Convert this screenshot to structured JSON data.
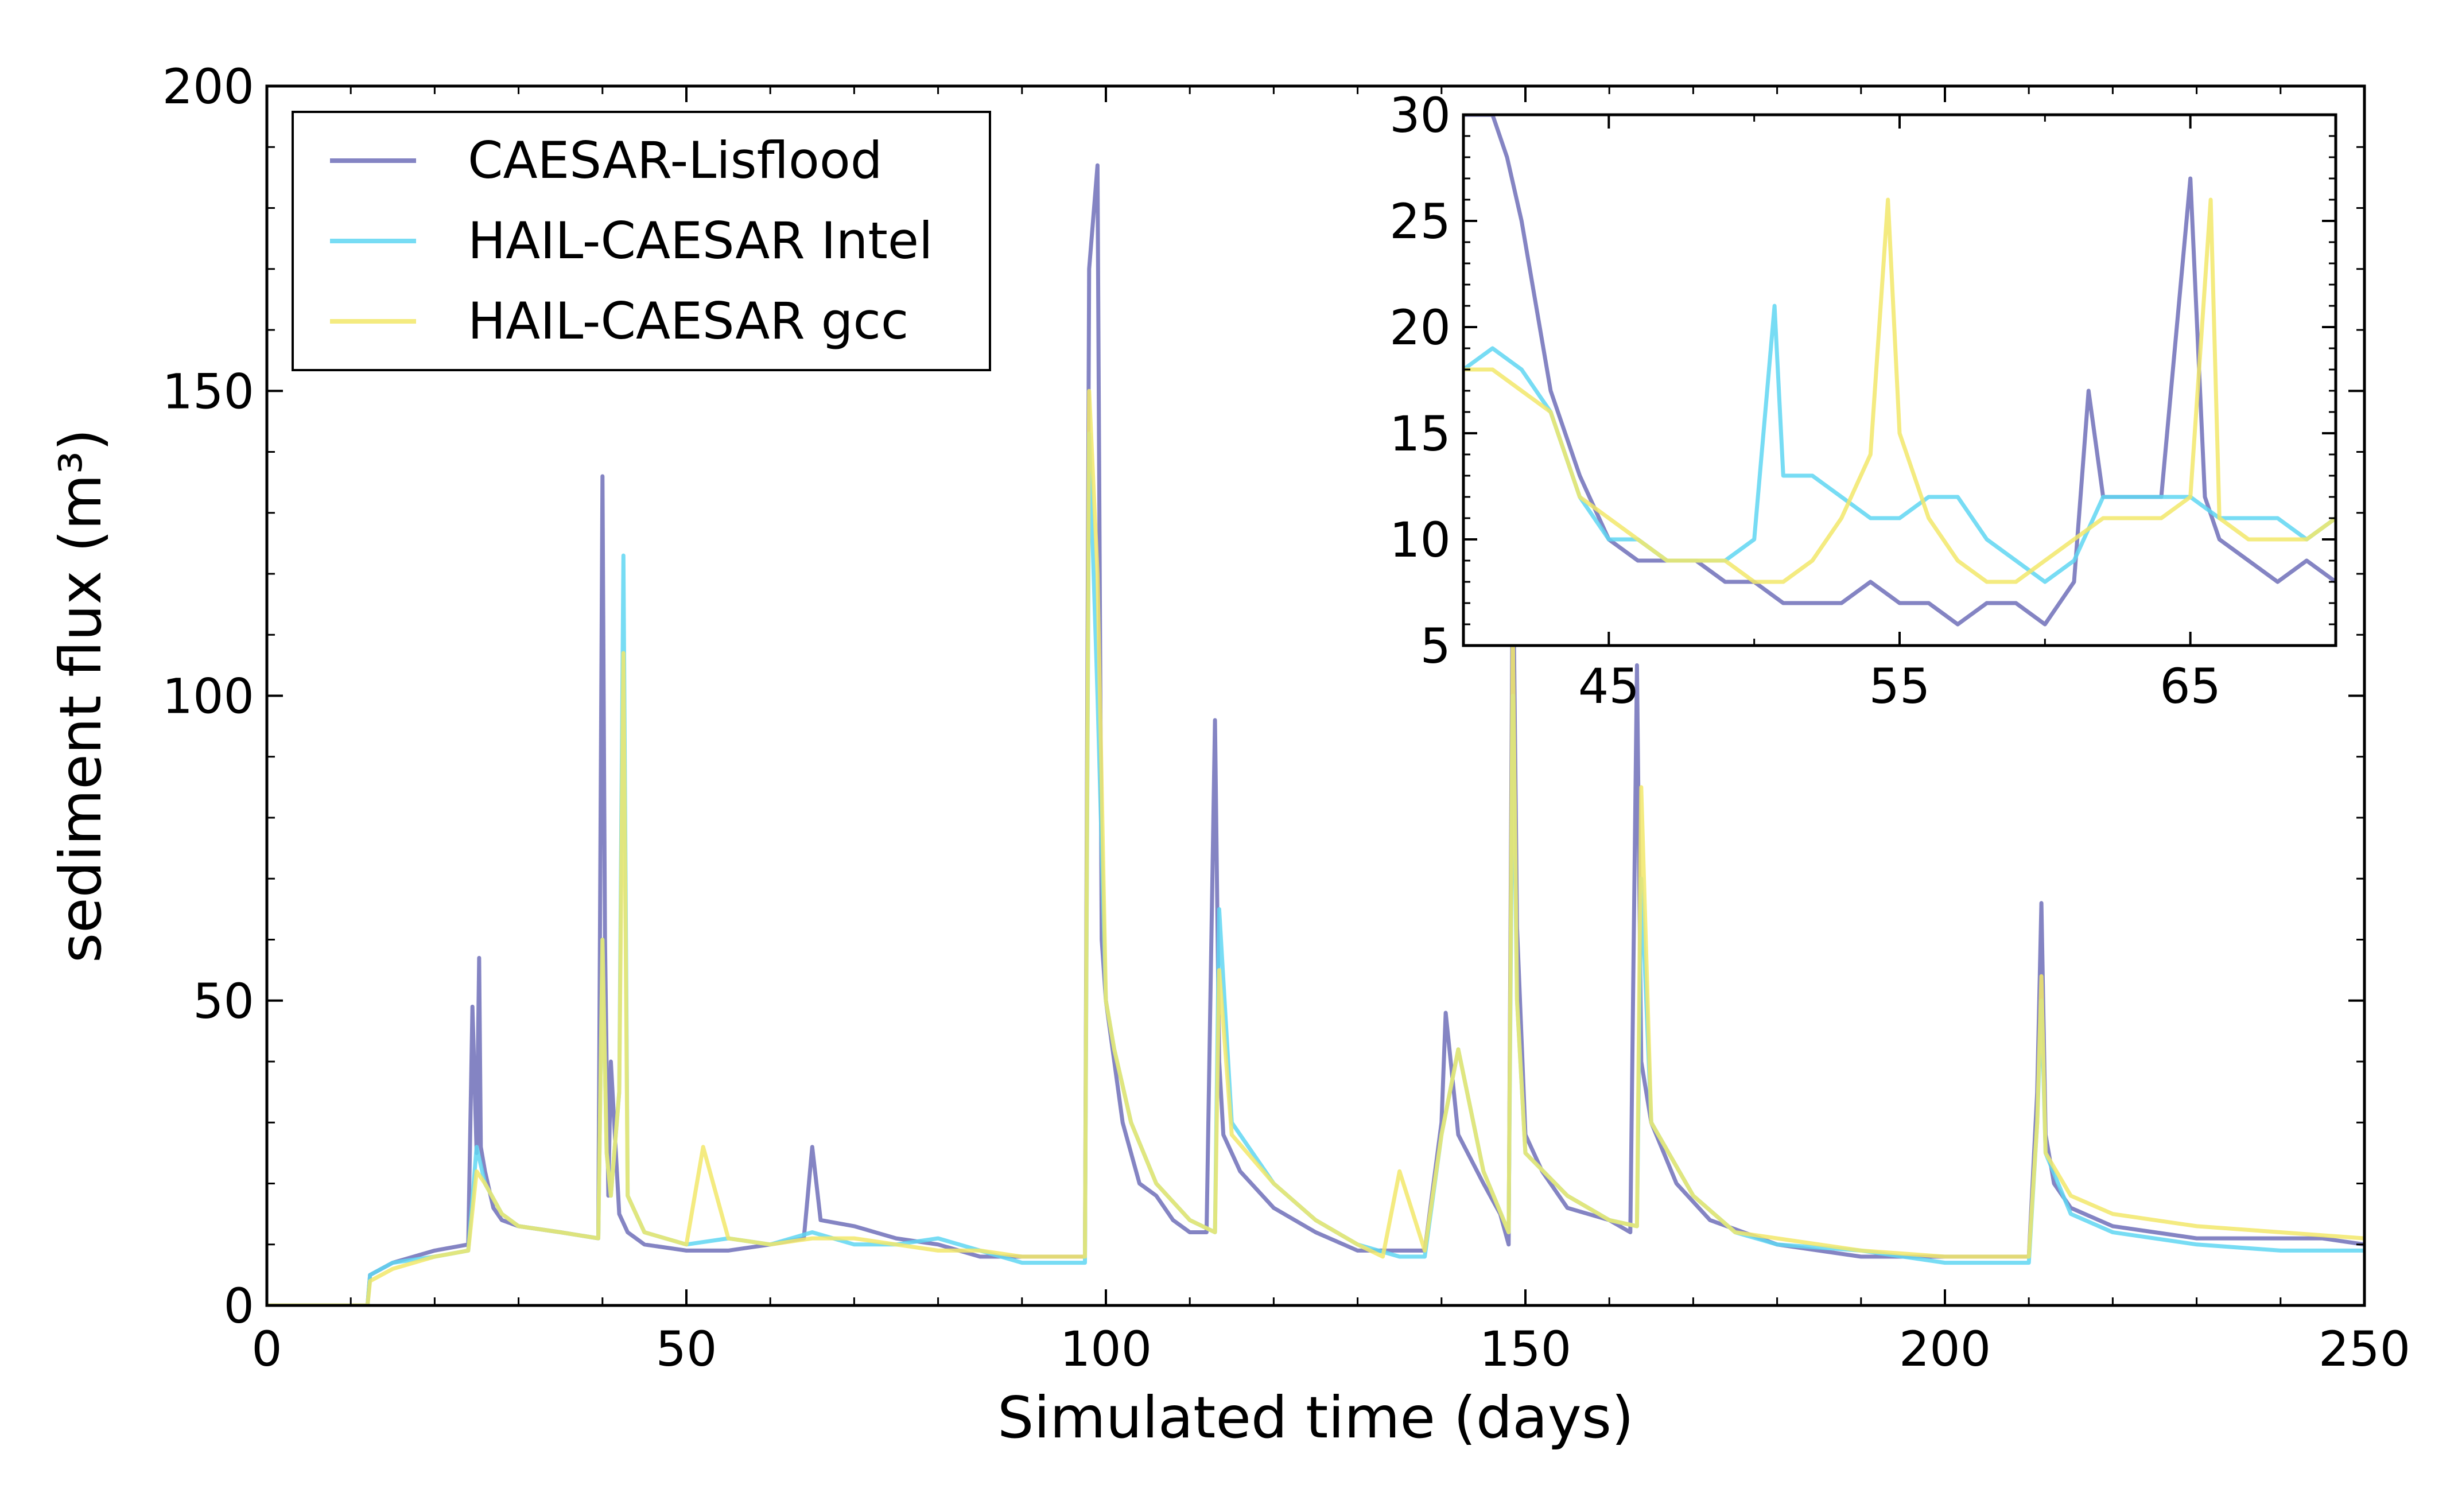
{
  "chart_data": [
    {
      "type": "line",
      "xlabel": "Simulated time (days)",
      "ylabel": "sediment flux (m³)",
      "xlim": [
        0,
        250
      ],
      "ylim": [
        0,
        200
      ],
      "xticks": [
        0,
        50,
        100,
        150,
        200,
        250
      ],
      "yticks": [
        0,
        50,
        100,
        150,
        200
      ],
      "grid": false,
      "legend": {
        "placement": "top-left",
        "entries": [
          "CAESAR-Lisflood",
          "HAIL-CAESAR Intel",
          "HAIL-CAESAR gcc"
        ]
      },
      "series": [
        {
          "name": "CAESAR-Lisflood",
          "color": "#6f6fb8",
          "x": [
            0,
            11,
            12,
            12.3,
            15,
            20,
            24,
            24.5,
            25,
            25.3,
            25.5,
            26,
            27,
            28,
            30,
            35,
            39.5,
            40,
            40.3,
            40.7,
            41,
            42,
            43,
            45,
            50,
            55,
            60,
            64,
            65,
            66,
            70,
            75,
            80,
            85,
            90,
            95,
            97.5,
            98,
            99,
            99.5,
            100,
            101,
            102,
            104,
            106,
            108,
            110,
            112,
            113,
            113.5,
            114,
            116,
            120,
            125,
            130,
            135,
            138,
            140,
            140.5,
            142,
            145,
            147,
            148,
            148.5,
            149,
            150,
            152,
            155,
            160,
            162.5,
            163.3,
            163.8,
            165,
            168,
            172,
            176,
            180,
            185,
            190,
            195,
            200,
            205,
            210,
            211,
            211.5,
            212,
            213,
            215,
            220,
            225,
            230,
            235,
            240,
            245,
            250
          ],
          "y": [
            0,
            0,
            0,
            5,
            7,
            9,
            10,
            49,
            25,
            57,
            26,
            22,
            16,
            14,
            13,
            12,
            11,
            136,
            60,
            18,
            40,
            15,
            12,
            10,
            9,
            9,
            10,
            11,
            26,
            14,
            13,
            11,
            10,
            8,
            8,
            8,
            8,
            170,
            187,
            60,
            50,
            40,
            30,
            20,
            18,
            14,
            12,
            12,
            96,
            40,
            28,
            22,
            16,
            12,
            9,
            9,
            9,
            30,
            48,
            28,
            20,
            15,
            10,
            126,
            62,
            28,
            22,
            16,
            14,
            12,
            105,
            40,
            30,
            20,
            14,
            12,
            10,
            9,
            8,
            8,
            8,
            8,
            8,
            35,
            66,
            28,
            20,
            16,
            13,
            12,
            11,
            11,
            11,
            11,
            10
          ]
        },
        {
          "name": "HAIL-CAESAR Intel",
          "color": "#5fd6f2",
          "x": [
            0,
            11,
            12,
            12.3,
            15,
            20,
            24,
            25,
            26,
            28,
            30,
            35,
            39.5,
            40,
            40.5,
            41,
            42,
            42.5,
            43,
            45,
            50,
            55,
            60,
            65,
            70,
            75,
            80,
            85,
            90,
            95,
            97.5,
            98,
            99,
            100,
            101,
            103,
            106,
            110,
            113,
            113.5,
            115,
            120,
            125,
            130,
            135,
            138,
            140,
            142,
            145,
            148,
            148.5,
            149,
            150,
            155,
            160,
            163.3,
            163.8,
            165,
            170,
            175,
            180,
            190,
            200,
            210,
            211,
            211.5,
            212,
            215,
            220,
            230,
            240,
            250
          ],
          "y": [
            0,
            0,
            0,
            5,
            7,
            8,
            9,
            26,
            20,
            15,
            13,
            12,
            11,
            60,
            25,
            18,
            35,
            123,
            18,
            12,
            10,
            11,
            10,
            12,
            10,
            10,
            11,
            9,
            7,
            7,
            7,
            143,
            100,
            50,
            42,
            30,
            20,
            14,
            12,
            65,
            30,
            20,
            14,
            10,
            8,
            8,
            28,
            42,
            22,
            12,
            100,
            50,
            25,
            18,
            14,
            13,
            70,
            30,
            18,
            12,
            10,
            9,
            7,
            7,
            30,
            50,
            25,
            15,
            12,
            10,
            9,
            9
          ]
        },
        {
          "name": "HAIL-CAESAR gcc",
          "color": "#f2e86a",
          "x": [
            0,
            11,
            12,
            12.3,
            15,
            20,
            24,
            25,
            26,
            28,
            30,
            35,
            39.5,
            40,
            40.5,
            41,
            42,
            42.5,
            43,
            45,
            50,
            52,
            55,
            60,
            65,
            70,
            75,
            80,
            85,
            90,
            95,
            97.5,
            98,
            99,
            100,
            101,
            103,
            106,
            110,
            113,
            113.5,
            115,
            120,
            125,
            130,
            133,
            135,
            138,
            140,
            142,
            145,
            148,
            148.5,
            149,
            150,
            155,
            160,
            163.3,
            163.8,
            165,
            170,
            175,
            180,
            190,
            200,
            210,
            211,
            211.5,
            212,
            215,
            220,
            230,
            240,
            250
          ],
          "y": [
            0,
            0,
            0,
            4,
            6,
            8,
            9,
            22,
            20,
            15,
            13,
            12,
            11,
            60,
            25,
            18,
            35,
            107,
            18,
            12,
            10,
            26,
            11,
            10,
            11,
            11,
            10,
            9,
            9,
            8,
            8,
            8,
            150,
            120,
            50,
            42,
            30,
            20,
            14,
            12,
            55,
            28,
            20,
            14,
            10,
            8,
            22,
            9,
            28,
            42,
            22,
            12,
            110,
            50,
            25,
            18,
            14,
            13,
            85,
            30,
            18,
            12,
            11,
            9,
            8,
            8,
            30,
            54,
            25,
            18,
            15,
            13,
            12,
            11
          ]
        }
      ]
    },
    {
      "type": "line",
      "inset": true,
      "xlim": [
        40,
        70
      ],
      "ylim": [
        5,
        30
      ],
      "xticks": [
        45,
        55,
        65
      ],
      "yticks": [
        5,
        10,
        15,
        20,
        25,
        30
      ],
      "series": [
        {
          "name": "CAESAR-Lisflood",
          "color": "#6f6fb8",
          "x": [
            40,
            41,
            41.5,
            42,
            43,
            44,
            45,
            46,
            47,
            48,
            49,
            50,
            51,
            52,
            53,
            54,
            55,
            56,
            57,
            58,
            59,
            60,
            61,
            61.5,
            62,
            63,
            64,
            65,
            65.5,
            66,
            67,
            68,
            69,
            70
          ],
          "y": [
            30,
            30,
            28,
            25,
            17,
            13,
            10,
            9,
            9,
            9,
            8,
            8,
            7,
            7,
            7,
            8,
            7,
            7,
            6,
            7,
            7,
            6,
            8,
            17,
            12,
            12,
            12,
            27,
            12,
            10,
            9,
            8,
            9,
            8
          ]
        },
        {
          "name": "HAIL-CAESAR Intel",
          "color": "#5fd6f2",
          "x": [
            40,
            41,
            42,
            43,
            44,
            45,
            46,
            47,
            48,
            49,
            50,
            50.7,
            51,
            52,
            53,
            54,
            55,
            56,
            57,
            58,
            59,
            60,
            61,
            62,
            63,
            64,
            65,
            66,
            67,
            68,
            69,
            70
          ],
          "y": [
            18,
            19,
            18,
            16,
            12,
            10,
            10,
            9,
            9,
            9,
            10,
            21,
            13,
            13,
            12,
            11,
            11,
            12,
            12,
            10,
            9,
            8,
            9,
            12,
            12,
            12,
            12,
            11,
            11,
            11,
            10,
            11
          ]
        },
        {
          "name": "HAIL-CAESAR gcc",
          "color": "#f2e86a",
          "x": [
            40,
            41,
            42,
            43,
            44,
            45,
            46,
            47,
            48,
            49,
            50,
            51,
            52,
            53,
            54,
            54.6,
            55,
            56,
            57,
            58,
            59,
            60,
            61,
            62,
            63,
            64,
            65,
            65.7,
            66,
            67,
            68,
            69,
            70
          ],
          "y": [
            18,
            18,
            17,
            16,
            12,
            11,
            10,
            9,
            9,
            9,
            8,
            8,
            9,
            11,
            14,
            26,
            15,
            11,
            9,
            8,
            8,
            9,
            10,
            11,
            11,
            11,
            12,
            26,
            11,
            10,
            10,
            10,
            11
          ]
        }
      ]
    }
  ]
}
